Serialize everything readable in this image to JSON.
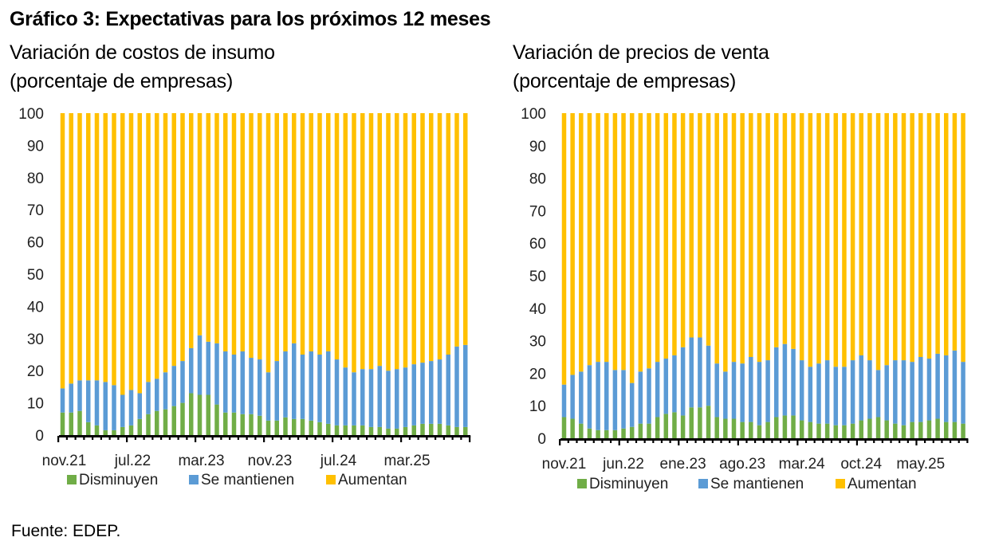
{
  "title": "Gráfico 3: Expectativas para los próximos 12 meses",
  "source": "Fuente: EDEP.",
  "colors": {
    "Disminuyen": "#70AD47",
    "Se mantienen": "#5B9BD5",
    "Aumentan": "#FFC000"
  },
  "chart_data": [
    {
      "type": "bar",
      "stacked": true,
      "title": "Variación de costos de insumo",
      "subtitle": "(porcentaje de empresas)",
      "xlabel": "",
      "ylabel": "",
      "ylim": [
        0,
        100
      ],
      "yticks": [
        0,
        10,
        20,
        30,
        40,
        50,
        60,
        70,
        80,
        90,
        100
      ],
      "grid": false,
      "legend": "bottom",
      "start_month": "nov.21",
      "n_periods": 48,
      "x_tick_labels": [
        "nov.21",
        "jul.22",
        "mar.23",
        "nov.23",
        "jul.24",
        "mar.25"
      ],
      "x_tick_label_every": 8,
      "series": [
        {
          "name": "Disminuyen",
          "values": [
            7,
            7,
            7.5,
            4,
            3,
            1.5,
            1.5,
            2.5,
            3,
            5,
            6.5,
            7.5,
            8,
            9,
            10,
            13,
            12.5,
            12.5,
            9.5,
            7,
            7,
            6.5,
            6.5,
            6,
            4.5,
            4.5,
            5.5,
            5,
            5,
            4.5,
            4,
            3.5,
            3,
            3,
            3,
            3,
            2.5,
            2.5,
            2,
            2,
            2.5,
            3,
            3.5,
            3.5,
            3.5,
            3,
            2.5,
            2.5
          ]
        },
        {
          "name": "Se mantienen",
          "values": [
            7.5,
            9,
            9.5,
            13,
            14,
            15,
            14,
            10,
            11,
            8,
            10,
            10,
            11.5,
            12.5,
            13,
            14,
            18.5,
            16.5,
            19,
            19,
            18,
            19.5,
            17.5,
            17.5,
            15,
            18.5,
            20.5,
            23.5,
            20,
            21.5,
            21,
            22.5,
            20.5,
            18,
            16.5,
            17.5,
            18,
            19,
            18,
            18.5,
            18.5,
            19,
            19,
            19.5,
            20,
            22,
            25,
            25.5
          ]
        },
        {
          "name": "Aumentan",
          "values": [
            85.5,
            84,
            83,
            83,
            83,
            83.5,
            84.5,
            87.5,
            86,
            87,
            83.5,
            82.5,
            80.5,
            78.5,
            77,
            73,
            69,
            71,
            71.5,
            74,
            75,
            74,
            76,
            76.5,
            80.5,
            77,
            74,
            71.5,
            75,
            74,
            75,
            74,
            76.5,
            79,
            80.5,
            79.5,
            79.5,
            78.5,
            80,
            79.5,
            79,
            78,
            77.5,
            77,
            76.5,
            75,
            72.5,
            72
          ]
        }
      ]
    },
    {
      "type": "bar",
      "stacked": true,
      "title": "Variación de precios de venta",
      "subtitle": "(porcentaje de empresas)",
      "xlabel": "",
      "ylabel": "",
      "ylim": [
        0,
        100
      ],
      "yticks": [
        0,
        10,
        20,
        30,
        40,
        50,
        60,
        70,
        80,
        90,
        100
      ],
      "grid": false,
      "legend": "bottom",
      "start_month": "nov.21",
      "n_periods": 48,
      "x_tick_labels": [
        "nov.21",
        "jun.22",
        "ene.23",
        "ago.23",
        "mar.24",
        "oct.24",
        "may.25"
      ],
      "x_tick_label_every": 7,
      "series": [
        {
          "name": "Disminuyen",
          "values": [
            6.5,
            6,
            4.5,
            3,
            2.5,
            2.5,
            2.5,
            3,
            3.5,
            4.5,
            4.5,
            6.5,
            7.5,
            8,
            7,
            9.5,
            9.5,
            10,
            6.5,
            6,
            6,
            5,
            5,
            4,
            5,
            6.5,
            7,
            7,
            5.5,
            5,
            4.5,
            4.5,
            4,
            4,
            4.5,
            5.5,
            6,
            6.5,
            5.5,
            4.5,
            4,
            5,
            5,
            5.5,
            6,
            5,
            5,
            4.5
          ]
        },
        {
          "name": "Se mantienen",
          "values": [
            10,
            13.5,
            16,
            19.5,
            21,
            21,
            18.5,
            18,
            13.5,
            16,
            17,
            17,
            17,
            17.5,
            21,
            21.5,
            21.5,
            18.5,
            16.5,
            14.5,
            17.5,
            18,
            20,
            19.5,
            19,
            21.5,
            22,
            20.5,
            18.5,
            17,
            18.5,
            19.5,
            18,
            18,
            19.5,
            20,
            18,
            14.5,
            17,
            19.5,
            20,
            18.5,
            20,
            19,
            20,
            20.5,
            22,
            19
          ]
        },
        {
          "name": "Aumentan",
          "values": [
            83.5,
            80.5,
            79.5,
            77.5,
            76.5,
            76.5,
            79,
            79,
            83,
            79.5,
            78.5,
            76.5,
            75.5,
            74.5,
            72,
            69,
            69,
            71.5,
            77,
            79.5,
            76.5,
            77,
            75,
            76.5,
            76,
            72,
            71,
            72.5,
            76,
            78,
            77,
            76,
            78,
            78,
            76,
            74.5,
            76,
            79,
            77.5,
            76,
            76,
            76.5,
            75,
            75.5,
            74,
            74.5,
            73,
            76.5
          ]
        }
      ]
    }
  ]
}
